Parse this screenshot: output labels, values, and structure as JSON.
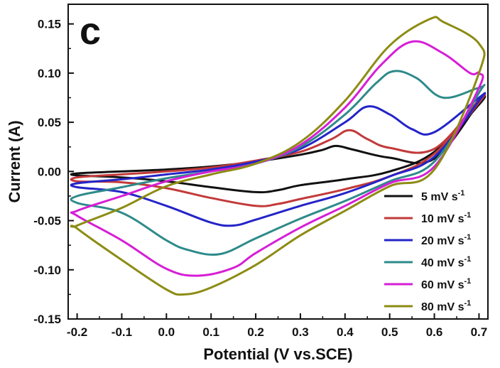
{
  "chart_data": {
    "type": "line",
    "panel_label": "c",
    "xlabel": "Potential (V vs.SCE)",
    "ylabel": "Current (A)",
    "xlim": [
      -0.22,
      0.72
    ],
    "ylim": [
      -0.15,
      0.17
    ],
    "x_ticks": [
      "-0.2",
      "-0.1",
      "0.0",
      "0.1",
      "0.2",
      "0.3",
      "0.4",
      "0.5",
      "0.6",
      "0.7"
    ],
    "y_ticks": [
      "-0.15",
      "-0.10",
      "-0.05",
      "0.00",
      "0.05",
      "0.10",
      "0.15"
    ],
    "legend_position": "bottom-right",
    "series": [
      {
        "name": "5 mV s",
        "unit_exponent": "-1",
        "color": "#111111",
        "x": [
          -0.2,
          -0.1,
          0.0,
          0.1,
          0.2,
          0.3,
          0.35,
          0.38,
          0.42,
          0.5,
          0.6,
          0.7,
          0.7,
          0.6,
          0.5,
          0.4,
          0.3,
          0.25,
          0.2,
          0.1,
          0.0,
          -0.1,
          -0.2
        ],
        "y": [
          -0.002,
          0.0,
          0.002,
          0.005,
          0.01,
          0.017,
          0.022,
          0.026,
          0.022,
          0.014,
          0.013,
          0.07,
          0.068,
          0.02,
          0.0,
          -0.008,
          -0.014,
          -0.019,
          -0.021,
          -0.016,
          -0.01,
          -0.006,
          -0.004
        ]
      },
      {
        "name": "10 mV s",
        "unit_exponent": "-1",
        "color": "#c23a3a",
        "x": [
          -0.2,
          -0.1,
          0.0,
          0.1,
          0.2,
          0.3,
          0.37,
          0.41,
          0.45,
          0.5,
          0.6,
          0.7,
          0.7,
          0.6,
          0.5,
          0.4,
          0.3,
          0.25,
          0.2,
          0.1,
          0.0,
          -0.1,
          -0.2
        ],
        "y": [
          -0.006,
          -0.003,
          0.0,
          0.004,
          0.011,
          0.02,
          0.033,
          0.042,
          0.033,
          0.024,
          0.023,
          0.073,
          0.07,
          0.018,
          -0.005,
          -0.018,
          -0.028,
          -0.033,
          -0.035,
          -0.027,
          -0.017,
          -0.011,
          -0.01
        ]
      },
      {
        "name": "20 mV s",
        "unit_exponent": "-1",
        "color": "#2424c8",
        "x": [
          -0.2,
          -0.1,
          0.0,
          0.1,
          0.2,
          0.3,
          0.4,
          0.45,
          0.5,
          0.55,
          0.6,
          0.7,
          0.7,
          0.6,
          0.5,
          0.4,
          0.3,
          0.2,
          0.15,
          0.1,
          0.0,
          -0.1,
          -0.2
        ],
        "y": [
          -0.012,
          -0.008,
          -0.003,
          0.002,
          0.01,
          0.023,
          0.05,
          0.066,
          0.058,
          0.043,
          0.04,
          0.075,
          0.072,
          0.015,
          -0.005,
          -0.022,
          -0.035,
          -0.049,
          -0.055,
          -0.052,
          -0.035,
          -0.021,
          -0.016
        ]
      },
      {
        "name": "40 mV s",
        "unit_exponent": "-1",
        "color": "#2e8a8a",
        "x": [
          -0.2,
          -0.1,
          0.0,
          0.1,
          0.2,
          0.3,
          0.4,
          0.47,
          0.51,
          0.56,
          0.62,
          0.7,
          0.7,
          0.6,
          0.5,
          0.4,
          0.3,
          0.2,
          0.12,
          0.05,
          0.0,
          -0.1,
          -0.2
        ],
        "y": [
          -0.025,
          -0.016,
          -0.007,
          0.0,
          0.008,
          0.025,
          0.058,
          0.09,
          0.102,
          0.095,
          0.075,
          0.085,
          0.08,
          0.01,
          -0.01,
          -0.03,
          -0.048,
          -0.068,
          -0.084,
          -0.08,
          -0.07,
          -0.042,
          -0.032
        ]
      },
      {
        "name": "60 mV s",
        "unit_exponent": "-1",
        "color": "#d61ed6",
        "x": [
          -0.2,
          -0.1,
          0.0,
          0.1,
          0.2,
          0.3,
          0.4,
          0.48,
          0.55,
          0.62,
          0.68,
          0.7,
          0.7,
          0.6,
          0.5,
          0.4,
          0.3,
          0.2,
          0.15,
          0.07,
          0.0,
          -0.1,
          -0.2
        ],
        "y": [
          -0.04,
          -0.025,
          -0.01,
          0.0,
          0.008,
          0.027,
          0.065,
          0.108,
          0.132,
          0.12,
          0.1,
          0.1,
          0.085,
          0.005,
          -0.012,
          -0.035,
          -0.057,
          -0.083,
          -0.098,
          -0.106,
          -0.099,
          -0.07,
          -0.045
        ]
      },
      {
        "name": "80 mV s",
        "unit_exponent": "-1",
        "color": "#8c8c14",
        "x": [
          -0.2,
          -0.1,
          0.0,
          0.1,
          0.2,
          0.3,
          0.4,
          0.5,
          0.59,
          0.62,
          0.7,
          0.7,
          0.6,
          0.5,
          0.4,
          0.3,
          0.2,
          0.1,
          0.04,
          0.0,
          -0.1,
          -0.2
        ],
        "y": [
          -0.055,
          -0.037,
          -0.015,
          -0.003,
          0.008,
          0.03,
          0.072,
          0.128,
          0.155,
          0.152,
          0.13,
          0.1,
          0.002,
          -0.015,
          -0.04,
          -0.065,
          -0.095,
          -0.118,
          -0.125,
          -0.12,
          -0.09,
          -0.058
        ]
      }
    ]
  }
}
